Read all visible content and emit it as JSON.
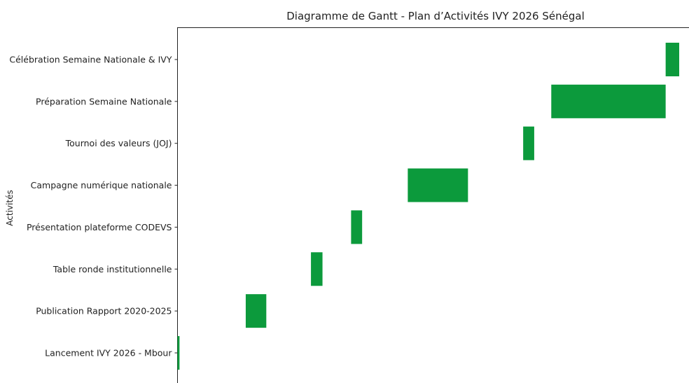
{
  "chart_data": {
    "type": "bar",
    "orientation": "horizontal",
    "title": "Diagramme de Gantt - Plan d’Activités IVY 2026 Sénégal",
    "xlabel": "",
    "ylabel": "Activités",
    "bar_color": "#0c9a3c",
    "grid": false,
    "x_unit": "relative time",
    "xlim": [
      0,
      100
    ],
    "categories": [
      "Lancement IVY 2026 - Mbour",
      "Publication Rapport 2020-2025",
      "Table ronde institutionnelle",
      "Présentation plateforme CODEVS",
      "Campagne numérique nationale",
      "Tournoi des valeurs (JOJ)",
      "Préparation Semaine Nationale",
      "Célébration Semaine Nationale & IVY"
    ],
    "series": [
      {
        "start": [
          0,
          13.6,
          26.6,
          34.6,
          45.9,
          68.9,
          74.5,
          97.3
        ],
        "duration": [
          0.4,
          4.1,
          2.3,
          2.2,
          12.0,
          2.2,
          22.8,
          2.7
        ]
      }
    ]
  }
}
